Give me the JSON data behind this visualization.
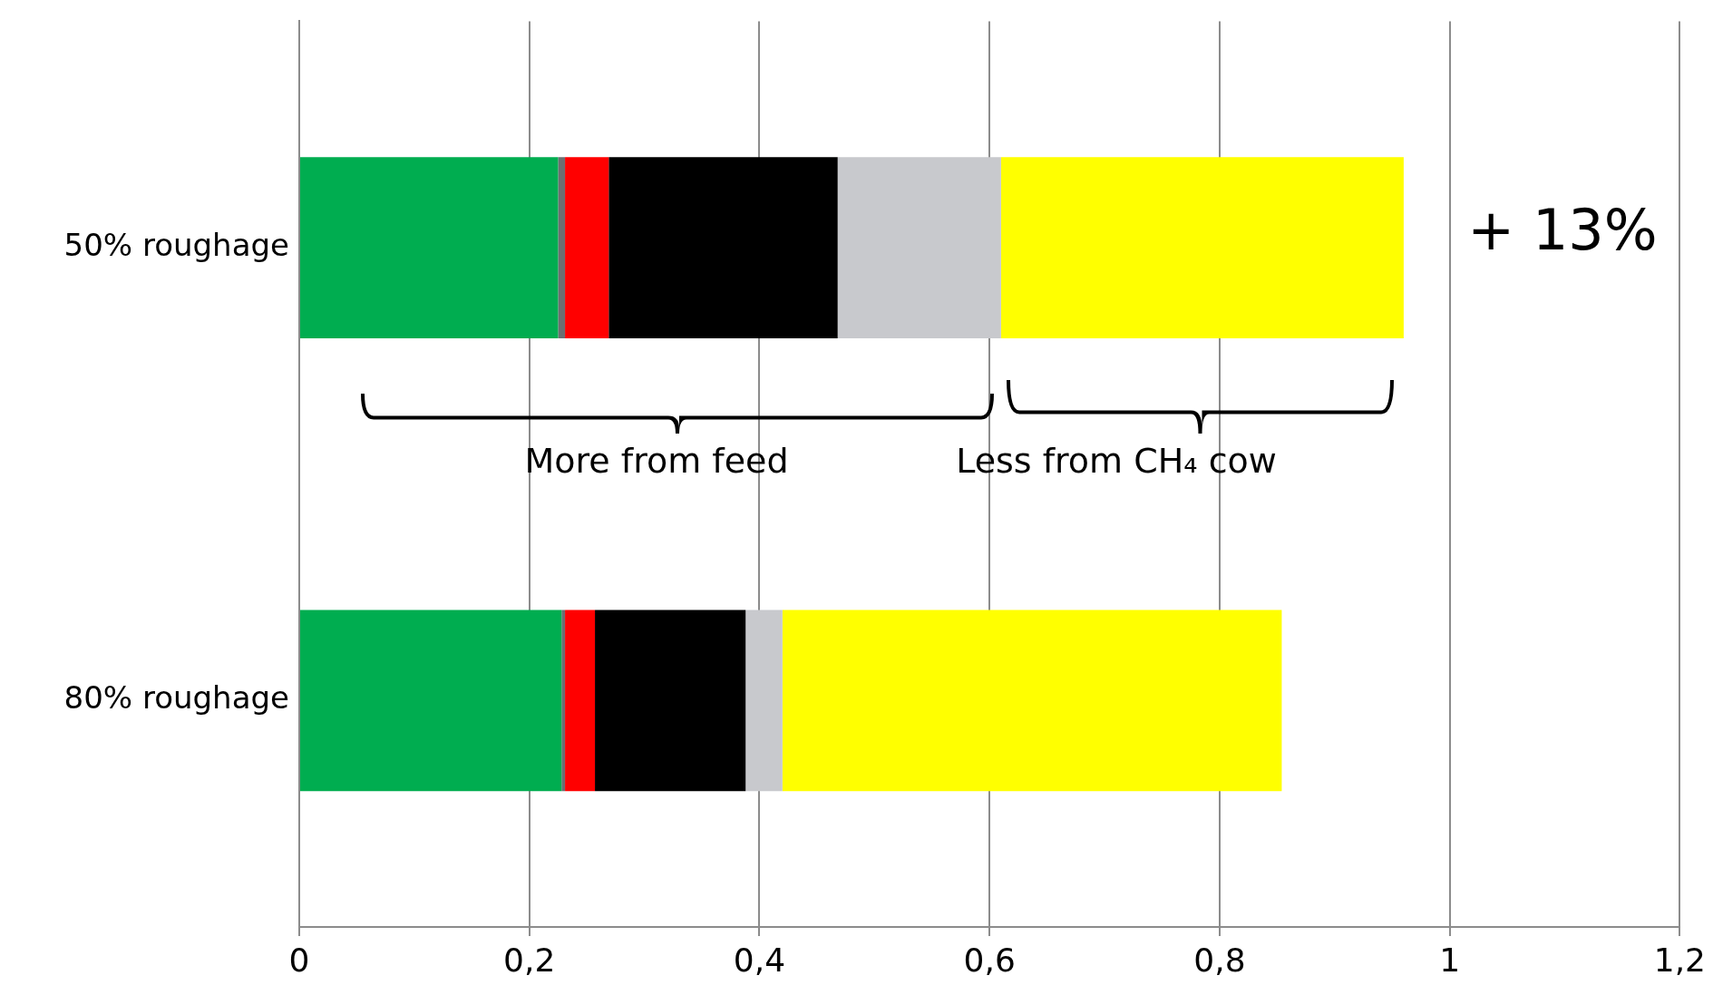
{
  "chart_data": {
    "type": "bar",
    "orientation": "horizontal",
    "stacked": true,
    "categories": [
      "50% roughage",
      "80% roughage"
    ],
    "series": [
      {
        "color": "#00ad50",
        "values": [
          0.225,
          0.228
        ]
      },
      {
        "color": "#6d6e71",
        "values": [
          0.006,
          0.003
        ]
      },
      {
        "color": "#ff0000",
        "values": [
          0.038,
          0.026
        ]
      },
      {
        "color": "#000000",
        "values": [
          0.199,
          0.131
        ]
      },
      {
        "color": "#c8c9cd",
        "values": [
          0.142,
          0.032
        ]
      },
      {
        "color": "#ffff00",
        "values": [
          0.35,
          0.434
        ]
      }
    ],
    "xlim": [
      0,
      1.2
    ],
    "xticks": [
      0,
      {
        "value": 0.2,
        "label": "0,2"
      },
      {
        "value": 0.4,
        "label": "0,4"
      },
      {
        "value": 0.6,
        "label": "0,6"
      },
      {
        "value": 0.8,
        "label": "0,8"
      },
      1,
      {
        "value": 1.2,
        "label": "1,2"
      }
    ],
    "grid": "x",
    "legend": false,
    "annotations": [
      "+ 13%",
      "More from feed",
      "Less from CH₄ cow"
    ]
  }
}
